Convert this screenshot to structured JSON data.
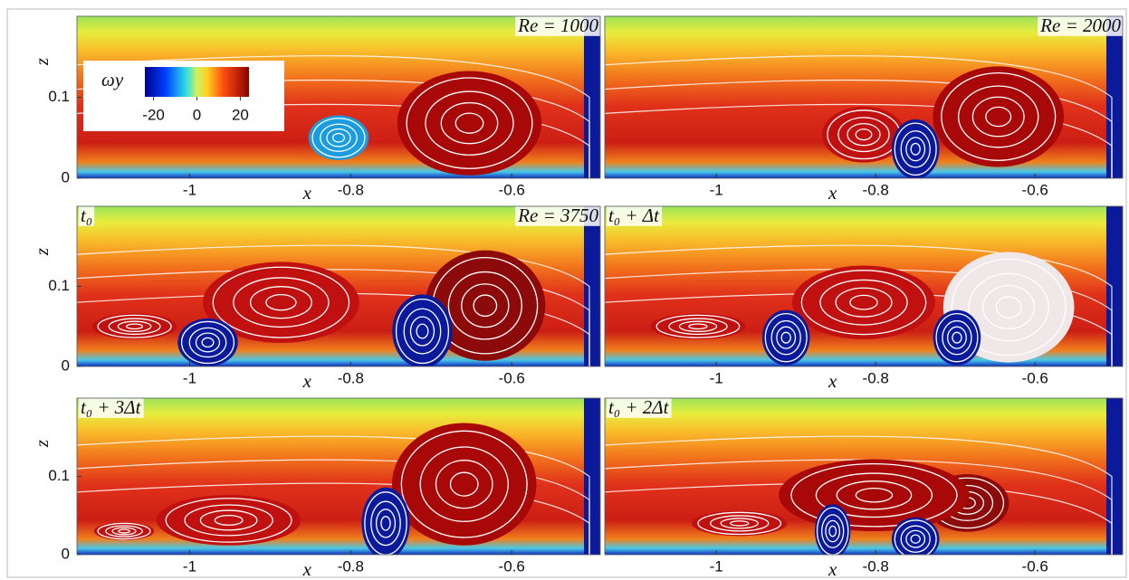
{
  "chart_data": [
    {
      "type": "contour",
      "annotations": [
        "Re = 1000"
      ],
      "xlabel": "x",
      "ylabel": "z",
      "xlim": [
        -1.14,
        -0.49
      ],
      "ylim": [
        0,
        0.2
      ],
      "xticks": [
        -1,
        -0.8,
        -0.6
      ],
      "yticks": [
        0,
        0.1
      ],
      "colorbar": {
        "label": "ωy",
        "lim": [
          -24,
          24
        ],
        "ticks": [
          -20,
          0,
          20
        ]
      }
    },
    {
      "type": "contour",
      "annotations": [
        "Re = 2000"
      ],
      "xlabel": "x",
      "xlim": [
        -1.14,
        -0.49
      ],
      "ylim": [
        0,
        0.2
      ],
      "xticks": [
        -1,
        -0.8,
        -0.6
      ]
    },
    {
      "type": "contour",
      "annotations": [
        "t₀",
        "Re = 3750"
      ],
      "xlabel": "x",
      "ylabel": "z",
      "xlim": [
        -1.14,
        -0.49
      ],
      "ylim": [
        0,
        0.2
      ],
      "xticks": [
        -1,
        -0.8,
        -0.6
      ],
      "yticks": [
        0,
        0.1
      ]
    },
    {
      "type": "contour",
      "annotations": [
        "t₀ + Δt"
      ],
      "xlabel": "x",
      "xlim": [
        -1.14,
        -0.49
      ],
      "ylim": [
        0,
        0.2
      ],
      "xticks": [
        -1,
        -0.8,
        -0.6
      ]
    },
    {
      "type": "contour",
      "annotations": [
        "t₀ + 3Δt"
      ],
      "xlabel": "x",
      "ylabel": "z",
      "xlim": [
        -1.14,
        -0.49
      ],
      "ylim": [
        0,
        0.2
      ],
      "xticks": [
        -1,
        -0.8,
        -0.6
      ],
      "yticks": [
        0,
        0.1
      ]
    },
    {
      "type": "contour",
      "annotations": [
        "t₀ + 2Δt"
      ],
      "xlabel": "x",
      "xlim": [
        -1.14,
        -0.49
      ],
      "ylim": [
        0,
        0.2
      ],
      "xticks": [
        -1,
        -0.8,
        -0.6
      ]
    }
  ]
}
